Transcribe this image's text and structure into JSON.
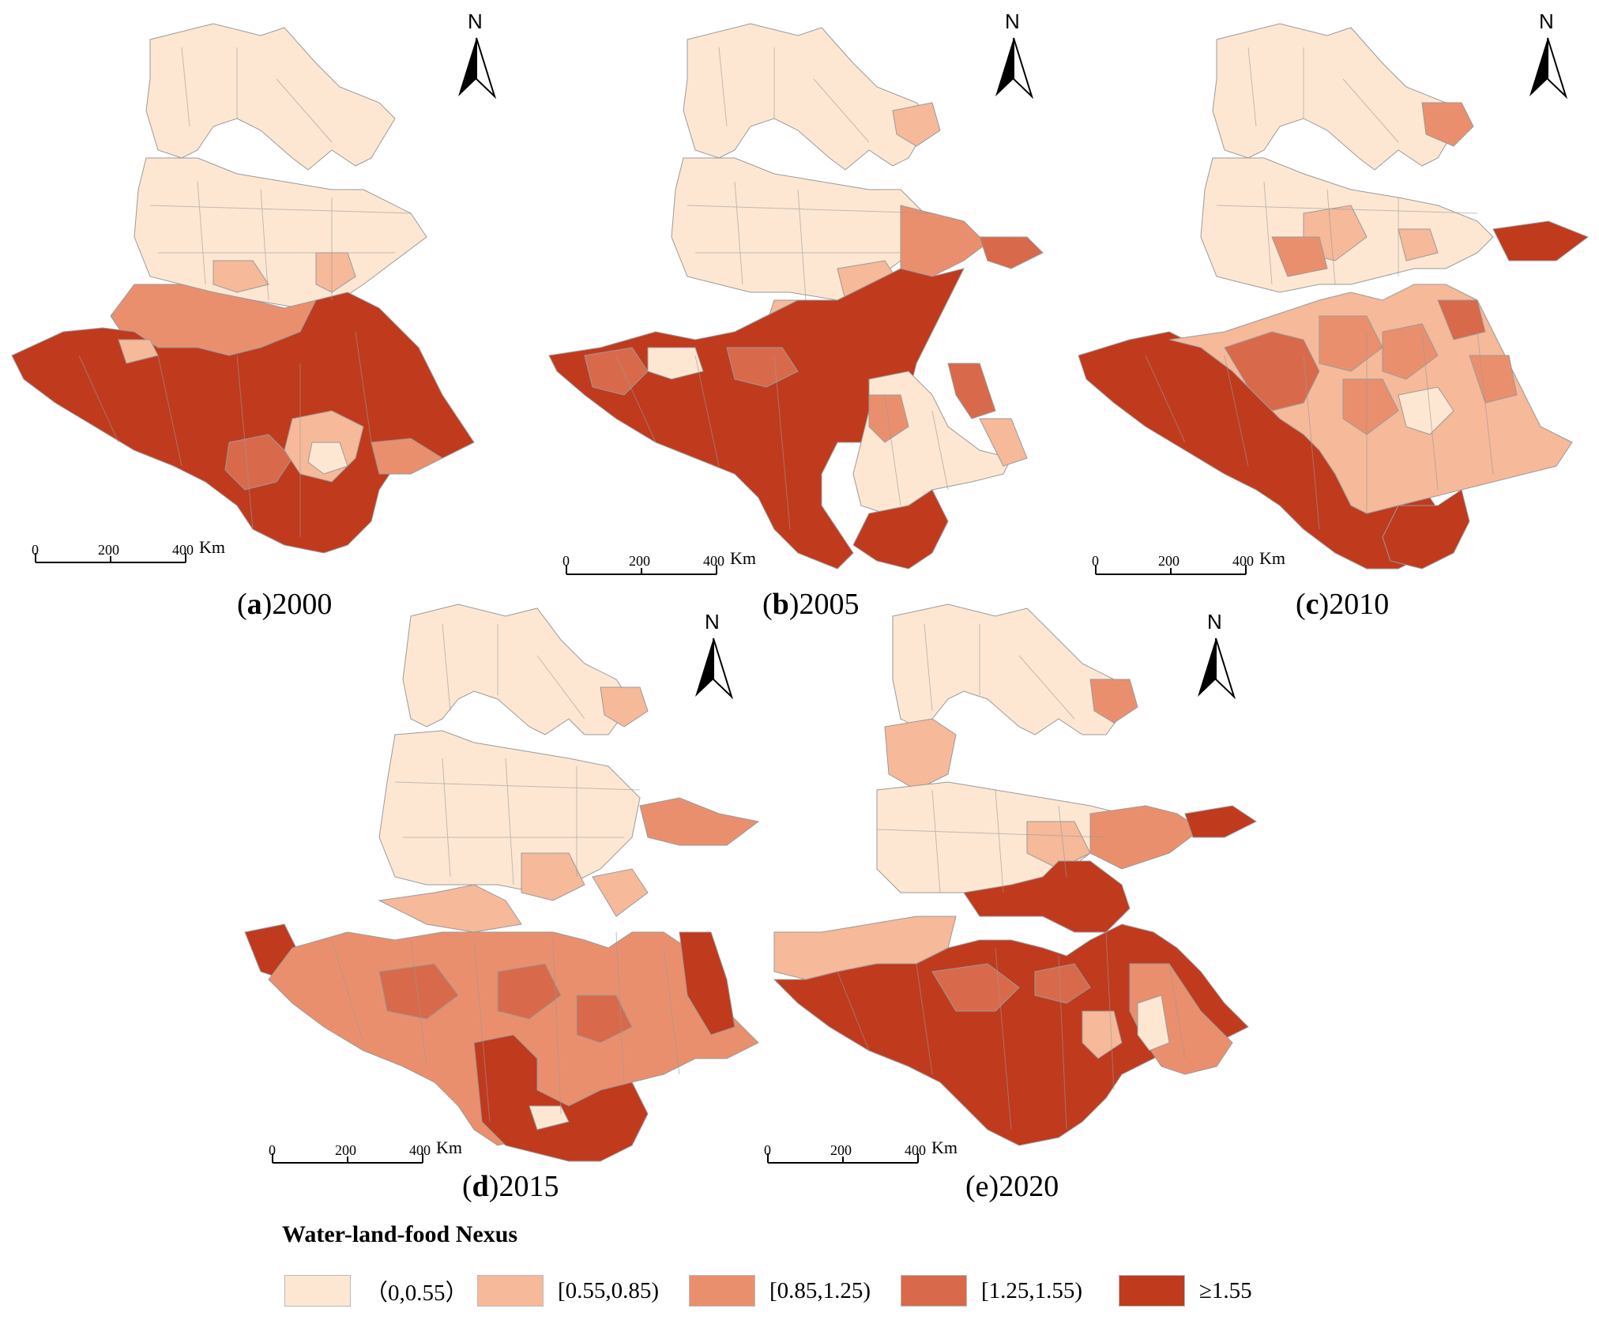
{
  "colors": {
    "class1": "#fde7d3",
    "class2": "#f6b99a",
    "class3": "#ea8f6d",
    "class4": "#d9694b",
    "class5": "#c03a1e",
    "boundary": "#9a9a9a"
  },
  "panels": [
    {
      "label": "a",
      "year": "2000",
      "north": "N",
      "scale": {
        "t0": "0",
        "t1": "200",
        "t2": "400",
        "unit": "Km"
      }
    },
    {
      "label": "b",
      "year": "2005",
      "north": "N",
      "scale": {
        "t0": "0",
        "t1": "200",
        "t2": "400",
        "unit": "Km"
      }
    },
    {
      "label": "c",
      "year": "2010",
      "north": "N",
      "scale": {
        "t0": "0",
        "t1": "200",
        "t2": "400",
        "unit": "Km"
      }
    },
    {
      "label": "d",
      "year": "2015",
      "north": "N",
      "scale": {
        "t0": "0",
        "t1": "200",
        "t2": "400",
        "unit": "Km"
      }
    },
    {
      "label": "e",
      "year": "2020",
      "north": "N",
      "scale": {
        "t0": "0",
        "t1": "200",
        "t2": "400",
        "unit": "Km"
      }
    }
  ],
  "legend": {
    "title": "Water-land-food Nexus",
    "items": [
      {
        "label": "（0,0.55）",
        "class": "class1"
      },
      {
        "label": "[0.55,0.85)",
        "class": "class2"
      },
      {
        "label": "[0.85,1.25)",
        "class": "class3"
      },
      {
        "label": "[1.25,1.55)",
        "class": "class4"
      },
      {
        "label": "≥1.55",
        "class": "class5"
      }
    ]
  }
}
